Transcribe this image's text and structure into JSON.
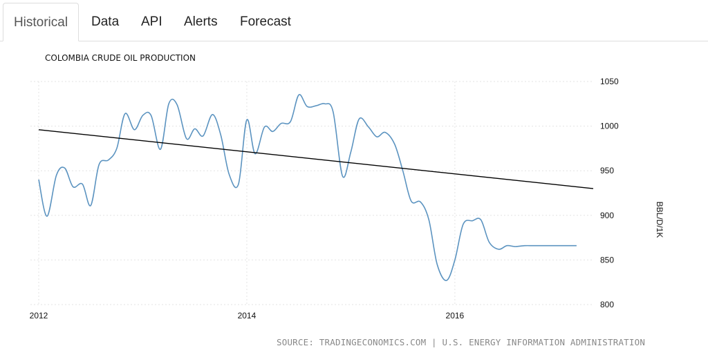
{
  "tabs": [
    {
      "label": "Historical",
      "active": true
    },
    {
      "label": "Data",
      "active": false
    },
    {
      "label": "API",
      "active": false
    },
    {
      "label": "Alerts",
      "active": false
    },
    {
      "label": "Forecast",
      "active": false
    }
  ],
  "source": "SOURCE: TRADINGECONOMICS.COM | U.S. ENERGY INFORMATION ADMINISTRATION",
  "chart_data": {
    "type": "line",
    "title": "COLOMBIA CRUDE OIL PRODUCTION",
    "ylabel": "BBL/D/1K",
    "xlim": [
      2012,
      2017.33
    ],
    "ylim": [
      800,
      1050
    ],
    "y_ticks": [
      800,
      850,
      900,
      950,
      1000,
      1050
    ],
    "x_ticks": [
      {
        "value": 2012,
        "label": "2012"
      },
      {
        "value": 2014,
        "label": "2014"
      },
      {
        "value": 2016,
        "label": "2016"
      }
    ],
    "grid": true,
    "colors": {
      "series": "#5b93c0",
      "trend": "#000000",
      "grid": "#e3e3e3"
    },
    "series": [
      {
        "x": [
          2012.0,
          2012.08,
          2012.17,
          2012.25,
          2012.33,
          2012.42,
          2012.5,
          2012.58,
          2012.67,
          2012.75,
          2012.83,
          2012.92,
          2013.0,
          2013.08,
          2013.17,
          2013.25,
          2013.33,
          2013.42,
          2013.5,
          2013.58,
          2013.67,
          2013.75,
          2013.83,
          2013.92,
          2014.0,
          2014.08,
          2014.17,
          2014.25,
          2014.33,
          2014.42,
          2014.5,
          2014.58,
          2014.67,
          2014.75,
          2014.83,
          2014.92,
          2015.0,
          2015.08,
          2015.17,
          2015.25,
          2015.33,
          2015.42,
          2015.5,
          2015.58,
          2015.67,
          2015.75,
          2015.83,
          2015.92,
          2016.0,
          2016.08,
          2016.17,
          2016.25,
          2016.33,
          2016.42,
          2016.5,
          2016.58,
          2016.67,
          2016.75,
          2016.83,
          2016.92,
          2017.0,
          2017.08,
          2017.17,
          2017.25
        ],
        "values": [
          940,
          899,
          945,
          953,
          932,
          935,
          911,
          957,
          962,
          975,
          1014,
          996,
          1012,
          1012,
          974,
          1025,
          1024,
          986,
          997,
          989,
          1013,
          990,
          946,
          935,
          1007,
          969,
          999,
          994,
          1003,
          1005,
          1035,
          1022,
          1023,
          1025,
          1016,
          944,
          971,
          1008,
          999,
          988,
          993,
          980,
          950,
          916,
          915,
          895,
          845,
          827,
          850,
          890,
          894,
          895,
          870,
          862,
          866,
          865,
          866,
          866,
          866,
          866,
          866,
          866,
          866,
          866
        ]
      },
      {
        "name": "",
        "x": [
          2012.0,
          2017.33
        ],
        "values": [
          996,
          930
        ]
      }
    ]
  }
}
